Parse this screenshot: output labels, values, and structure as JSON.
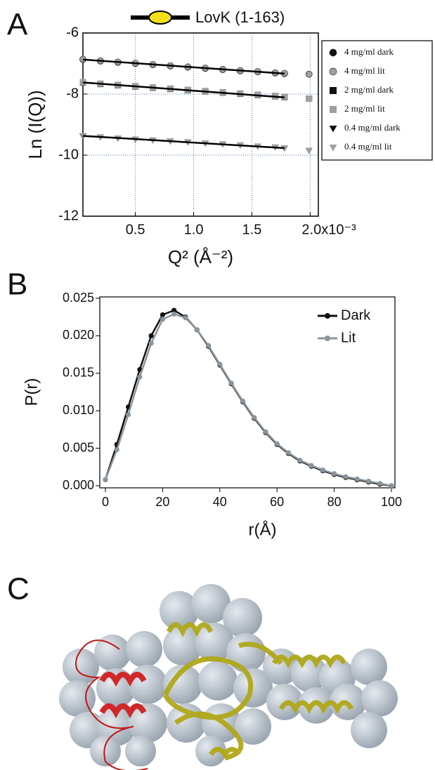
{
  "panel_labels": [
    "A",
    "B",
    "C"
  ],
  "chart_data": [
    {
      "type": "scatter",
      "title": "LovK (1-163)",
      "x_label": "Q² (Å⁻²)",
      "y_label": "Ln (I(Q))",
      "xlim": [
        5e-05,
        0.00207
      ],
      "ylim": [
        -12,
        -6
      ],
      "xticks": [
        {
          "value": 0.0005,
          "label": "0.5"
        },
        {
          "value": 0.001,
          "label": "1.0"
        },
        {
          "value": 0.0015,
          "label": "1.5"
        },
        {
          "value": 0.002,
          "label": "2.0x10⁻³"
        }
      ],
      "yticks": [
        -12,
        -10,
        -8,
        -6
      ],
      "grid": true,
      "legend": "outside-right",
      "x": [
        5e-05,
        0.0002,
        0.00035,
        0.0005,
        0.00065,
        0.0008,
        0.00095,
        0.0011,
        0.00125,
        0.0014,
        0.00155,
        0.0017,
        0.00178,
        0.00199
      ],
      "series": [
        {
          "name": "4 mg/ml dark",
          "color": "#111111",
          "marker": "circle",
          "values": [
            -6.87,
            -6.92,
            -6.96,
            -7.0,
            -7.04,
            -7.08,
            -7.12,
            -7.16,
            -7.2,
            -7.24,
            -7.27,
            -7.31,
            -7.33,
            -7.35
          ]
        },
        {
          "name": "4 mg/ml lit",
          "color": "#a0a0a0",
          "marker": "circle",
          "values": [
            -6.86,
            -6.91,
            -6.95,
            -6.99,
            -7.03,
            -7.07,
            -7.11,
            -7.15,
            -7.19,
            -7.23,
            -7.26,
            -7.3,
            -7.32,
            -7.35
          ]
        },
        {
          "name": "2 mg/ml dark",
          "color": "#111111",
          "marker": "square",
          "values": [
            -7.62,
            -7.67,
            -7.71,
            -7.75,
            -7.79,
            -7.83,
            -7.87,
            -7.91,
            -7.95,
            -7.99,
            -8.03,
            -8.07,
            -8.1,
            -8.15
          ]
        },
        {
          "name": "2 mg/ml lit",
          "color": "#a0a0a0",
          "marker": "square",
          "values": [
            -7.61,
            -7.66,
            -7.7,
            -7.74,
            -7.78,
            -7.82,
            -7.86,
            -7.9,
            -7.94,
            -7.98,
            -8.02,
            -8.06,
            -8.09,
            -8.15
          ]
        },
        {
          "name": "0.4 mg/ml dark",
          "color": "#111111",
          "marker": "triangle",
          "values": [
            -9.38,
            -9.41,
            -9.45,
            -9.48,
            -9.51,
            -9.54,
            -9.57,
            -9.61,
            -9.64,
            -9.67,
            -9.71,
            -9.74,
            -9.77,
            -9.85
          ]
        },
        {
          "name": "0.4 mg/ml lit",
          "color": "#a0a0a0",
          "marker": "triangle",
          "values": [
            -9.36,
            -9.4,
            -9.44,
            -9.47,
            -9.5,
            -9.53,
            -9.56,
            -9.6,
            -9.63,
            -9.66,
            -9.7,
            -9.73,
            -9.76,
            -9.84
          ]
        }
      ],
      "fits": [
        {
          "x": [
            5e-05,
            0.00178
          ],
          "y": [
            -6.87,
            -7.33
          ]
        },
        {
          "x": [
            5e-05,
            0.00178
          ],
          "y": [
            -7.62,
            -8.11
          ]
        },
        {
          "x": [
            5e-05,
            0.00178
          ],
          "y": [
            -9.37,
            -9.77
          ]
        }
      ],
      "fit_color": "#000000"
    },
    {
      "type": "line",
      "x_label": "r(Å)",
      "y_label": "P(r)",
      "xlim": [
        0,
        100
      ],
      "ylim": [
        0,
        0.025
      ],
      "xticks": [
        0,
        20,
        40,
        60,
        80,
        100
      ],
      "yticks": [
        {
          "value": 0,
          "label": "0.000"
        },
        {
          "value": 0.005,
          "label": "0.005"
        },
        {
          "value": 0.01,
          "label": "0.010"
        },
        {
          "value": 0.015,
          "label": "0.015"
        },
        {
          "value": 0.02,
          "label": "0.020"
        },
        {
          "value": 0.025,
          "label": "0.025"
        }
      ],
      "legend": "upper-right",
      "x": [
        0,
        4,
        8,
        12,
        16,
        20,
        24,
        28,
        32,
        36,
        40,
        44,
        48,
        52,
        56,
        60,
        64,
        68,
        72,
        76,
        80,
        84,
        88,
        92,
        96,
        100
      ],
      "series": [
        {
          "name": "Dark",
          "color": "#111111",
          "values": [
            0.0008,
            0.0055,
            0.0105,
            0.0155,
            0.02,
            0.0228,
            0.0234,
            0.0225,
            0.0208,
            0.0186,
            0.0161,
            0.0136,
            0.0112,
            0.009,
            0.0071,
            0.0055,
            0.0043,
            0.0033,
            0.0026,
            0.002,
            0.0015,
            0.0011,
            0.0008,
            0.0005,
            0.0002,
            0.0
          ]
        },
        {
          "name": "Lit",
          "color": "#8a949c",
          "values": [
            0.0008,
            0.0048,
            0.0095,
            0.0145,
            0.019,
            0.0222,
            0.0229,
            0.0224,
            0.0208,
            0.0187,
            0.0162,
            0.0137,
            0.0113,
            0.0091,
            0.0072,
            0.0056,
            0.0044,
            0.0034,
            0.0027,
            0.0021,
            0.0016,
            0.0012,
            0.0009,
            0.0006,
            0.0003,
            0.0
          ]
        }
      ]
    }
  ]
}
